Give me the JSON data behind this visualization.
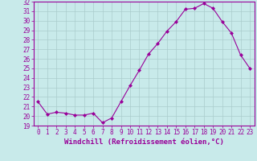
{
  "x": [
    0,
    1,
    2,
    3,
    4,
    5,
    6,
    7,
    8,
    9,
    10,
    11,
    12,
    13,
    14,
    15,
    16,
    17,
    18,
    19,
    20,
    21,
    22,
    23
  ],
  "y": [
    21.5,
    20.2,
    20.4,
    20.3,
    20.1,
    20.1,
    20.3,
    19.3,
    19.8,
    21.5,
    23.2,
    24.8,
    26.5,
    27.6,
    28.9,
    29.9,
    31.2,
    31.3,
    31.8,
    31.3,
    29.9,
    28.7,
    26.4,
    25.0
  ],
  "line_color": "#990099",
  "marker": "D",
  "marker_size": 2,
  "bg_color": "#c8eaea",
  "grid_color": "#aacccc",
  "xlabel": "Windchill (Refroidissement éolien,°C)",
  "ylim": [
    19,
    32
  ],
  "xlim_min": -0.5,
  "xlim_max": 23.5,
  "yticks": [
    19,
    20,
    21,
    22,
    23,
    24,
    25,
    26,
    27,
    28,
    29,
    30,
    31,
    32
  ],
  "xticks": [
    0,
    1,
    2,
    3,
    4,
    5,
    6,
    7,
    8,
    9,
    10,
    11,
    12,
    13,
    14,
    15,
    16,
    17,
    18,
    19,
    20,
    21,
    22,
    23
  ],
  "tick_color": "#990099",
  "label_color": "#990099",
  "spine_color": "#990099",
  "tick_fontsize": 5.5,
  "xlabel_fontsize": 6.5
}
